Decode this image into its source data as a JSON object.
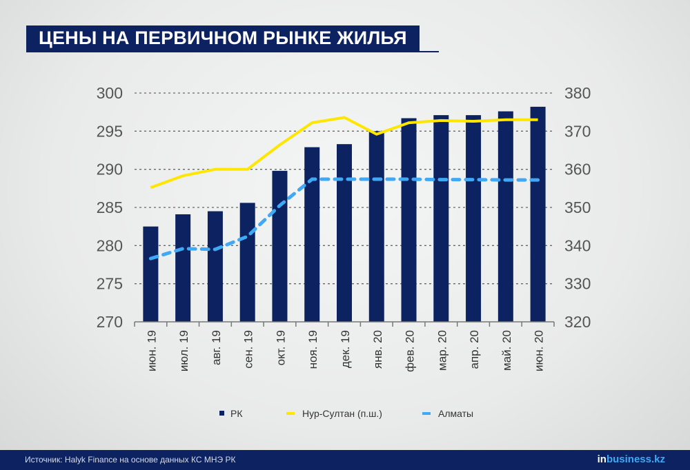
{
  "footer": {
    "source": "Источник: Halyk Finance на основе данных КС МНЭ РК",
    "logo": "inbusiness.kz",
    "logo_in": "in",
    "logo_rest": "business.kz"
  },
  "colors": {
    "bar": "#0d2260",
    "yellow": "#ffe600",
    "blue": "#3fa9f5"
  },
  "chart_data": {
    "type": "bar",
    "title": "ЦЕНЫ НА ПЕРВИЧНОМ РЫНКЕ ЖИЛЬЯ",
    "categories": [
      "июн. 19",
      "июл. 19",
      "авг. 19",
      "сен. 19",
      "окт. 19",
      "ноя. 19",
      "дек. 19",
      "янв. 20",
      "фев. 20",
      "мар. 20",
      "апр. 20",
      "май. 20",
      "июн. 20"
    ],
    "ylim": [
      270,
      300
    ],
    "yticks": [
      "270",
      "275",
      "280",
      "285",
      "290",
      "295",
      "300"
    ],
    "y2lim": [
      320,
      380
    ],
    "y2ticks": [
      "320",
      "330",
      "340",
      "350",
      "360",
      "370",
      "380"
    ],
    "grid": true,
    "legend_position": "bottom",
    "series": [
      {
        "name": "РК",
        "type": "bar",
        "axis": "left",
        "values": [
          282.5,
          284.1,
          284.5,
          285.6,
          289.8,
          292.9,
          293.3,
          295.0,
          296.7,
          297.1,
          297.1,
          297.6,
          298.2
        ]
      },
      {
        "name": "Нур-Султан (п.ш.)",
        "type": "line",
        "axis": "right",
        "values": [
          355.2,
          358.3,
          360.0,
          360.0,
          366.4,
          372.2,
          373.6,
          369.2,
          372.2,
          372.8,
          372.6,
          373.0,
          373.0
        ]
      },
      {
        "name": "Алматы",
        "type": "line",
        "style": "dashed",
        "axis": "right",
        "values": [
          336.6,
          339.2,
          339.0,
          342.4,
          350.5,
          357.4,
          357.4,
          357.4,
          357.4,
          357.3,
          357.3,
          357.2,
          357.2
        ]
      }
    ]
  }
}
